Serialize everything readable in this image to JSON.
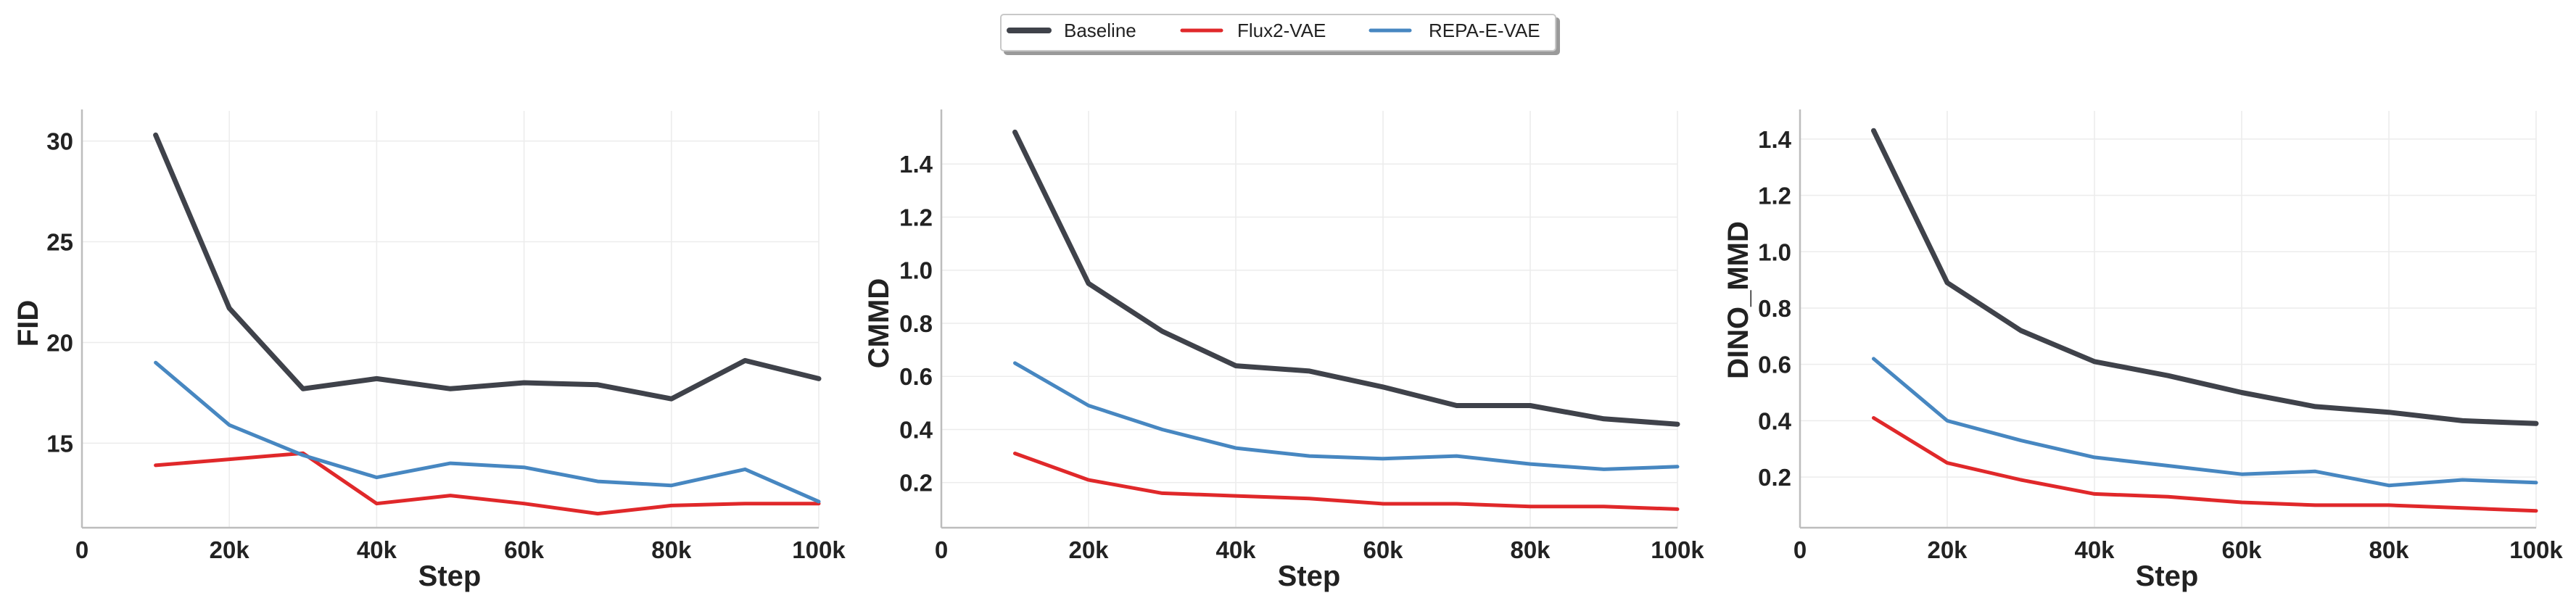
{
  "legend": {
    "entries": [
      {
        "name": "Baseline",
        "color": "#3f424a"
      },
      {
        "name": "Flux2-VAE",
        "color": "#e0282a"
      },
      {
        "name": "REPA-E-VAE",
        "color": "#4787c1"
      }
    ],
    "placement": "top-center"
  },
  "chart_data": [
    {
      "type": "line",
      "xlabel": "Step",
      "ylabel": "FID",
      "x": [
        10000,
        20000,
        30000,
        40000,
        50000,
        60000,
        70000,
        80000,
        90000,
        100000
      ],
      "xlim": [
        0,
        100000
      ],
      "xticks": [
        0,
        20000,
        40000,
        60000,
        80000,
        100000
      ],
      "xtick_labels": [
        "0",
        "20k",
        "40k",
        "60k",
        "80k",
        "100k"
      ],
      "ylim": [
        10.8,
        31.5
      ],
      "yticks": [
        15,
        20,
        25,
        30
      ],
      "ytick_labels": [
        "15",
        "20",
        "25",
        "30"
      ],
      "grid": true,
      "series": [
        {
          "name": "Baseline",
          "values": [
            30.3,
            21.7,
            17.7,
            18.2,
            17.7,
            18.0,
            17.9,
            17.2,
            19.1,
            18.2
          ]
        },
        {
          "name": "Flux2-VAE",
          "values": [
            13.9,
            14.2,
            14.5,
            12.0,
            12.4,
            12.0,
            11.5,
            11.9,
            12.0,
            12.0
          ]
        },
        {
          "name": "REPA-E-VAE",
          "values": [
            19.0,
            15.9,
            14.4,
            13.3,
            14.0,
            13.8,
            13.1,
            12.9,
            13.7,
            12.1
          ]
        }
      ]
    },
    {
      "type": "line",
      "xlabel": "Step",
      "ylabel": "CMMD",
      "x": [
        10000,
        20000,
        30000,
        40000,
        50000,
        60000,
        70000,
        80000,
        90000,
        100000
      ],
      "xlim": [
        0,
        100000
      ],
      "xticks": [
        0,
        20000,
        40000,
        60000,
        80000,
        100000
      ],
      "xtick_labels": [
        "0",
        "20k",
        "40k",
        "60k",
        "80k",
        "100k"
      ],
      "ylim": [
        0.03,
        1.6
      ],
      "yticks": [
        0.2,
        0.4,
        0.6,
        0.8,
        1.0,
        1.2,
        1.4
      ],
      "ytick_labels": [
        "0.2",
        "0.4",
        "0.6",
        "0.8",
        "1.0",
        "1.2",
        "1.4"
      ],
      "grid": true,
      "series": [
        {
          "name": "Baseline",
          "values": [
            1.52,
            0.95,
            0.77,
            0.64,
            0.62,
            0.56,
            0.49,
            0.49,
            0.44,
            0.42
          ]
        },
        {
          "name": "Flux2-VAE",
          "values": [
            0.31,
            0.21,
            0.16,
            0.15,
            0.14,
            0.12,
            0.12,
            0.11,
            0.11,
            0.1
          ]
        },
        {
          "name": "REPA-E-VAE",
          "values": [
            0.65,
            0.49,
            0.4,
            0.33,
            0.3,
            0.29,
            0.3,
            0.27,
            0.25,
            0.26
          ]
        }
      ]
    },
    {
      "type": "line",
      "xlabel": "Step",
      "ylabel": "DINO_MMD",
      "x": [
        10000,
        20000,
        30000,
        40000,
        50000,
        60000,
        70000,
        80000,
        90000,
        100000
      ],
      "xlim": [
        0,
        100000
      ],
      "xticks": [
        0,
        20000,
        40000,
        60000,
        80000,
        100000
      ],
      "xtick_labels": [
        "0",
        "20k",
        "40k",
        "60k",
        "80k",
        "100k"
      ],
      "ylim": [
        0.02,
        1.5
      ],
      "yticks": [
        0.2,
        0.4,
        0.6,
        0.8,
        1.0,
        1.2,
        1.4
      ],
      "ytick_labels": [
        "0.2",
        "0.4",
        "0.6",
        "0.8",
        "1.0",
        "1.2",
        "1.4"
      ],
      "grid": true,
      "series": [
        {
          "name": "Baseline",
          "values": [
            1.43,
            0.89,
            0.72,
            0.61,
            0.56,
            0.5,
            0.45,
            0.43,
            0.4,
            0.39
          ]
        },
        {
          "name": "Flux2-VAE",
          "values": [
            0.41,
            0.25,
            0.19,
            0.14,
            0.13,
            0.11,
            0.1,
            0.1,
            0.09,
            0.08
          ]
        },
        {
          "name": "REPA-E-VAE",
          "values": [
            0.62,
            0.4,
            0.33,
            0.27,
            0.24,
            0.21,
            0.22,
            0.17,
            0.19,
            0.18
          ]
        }
      ]
    }
  ]
}
